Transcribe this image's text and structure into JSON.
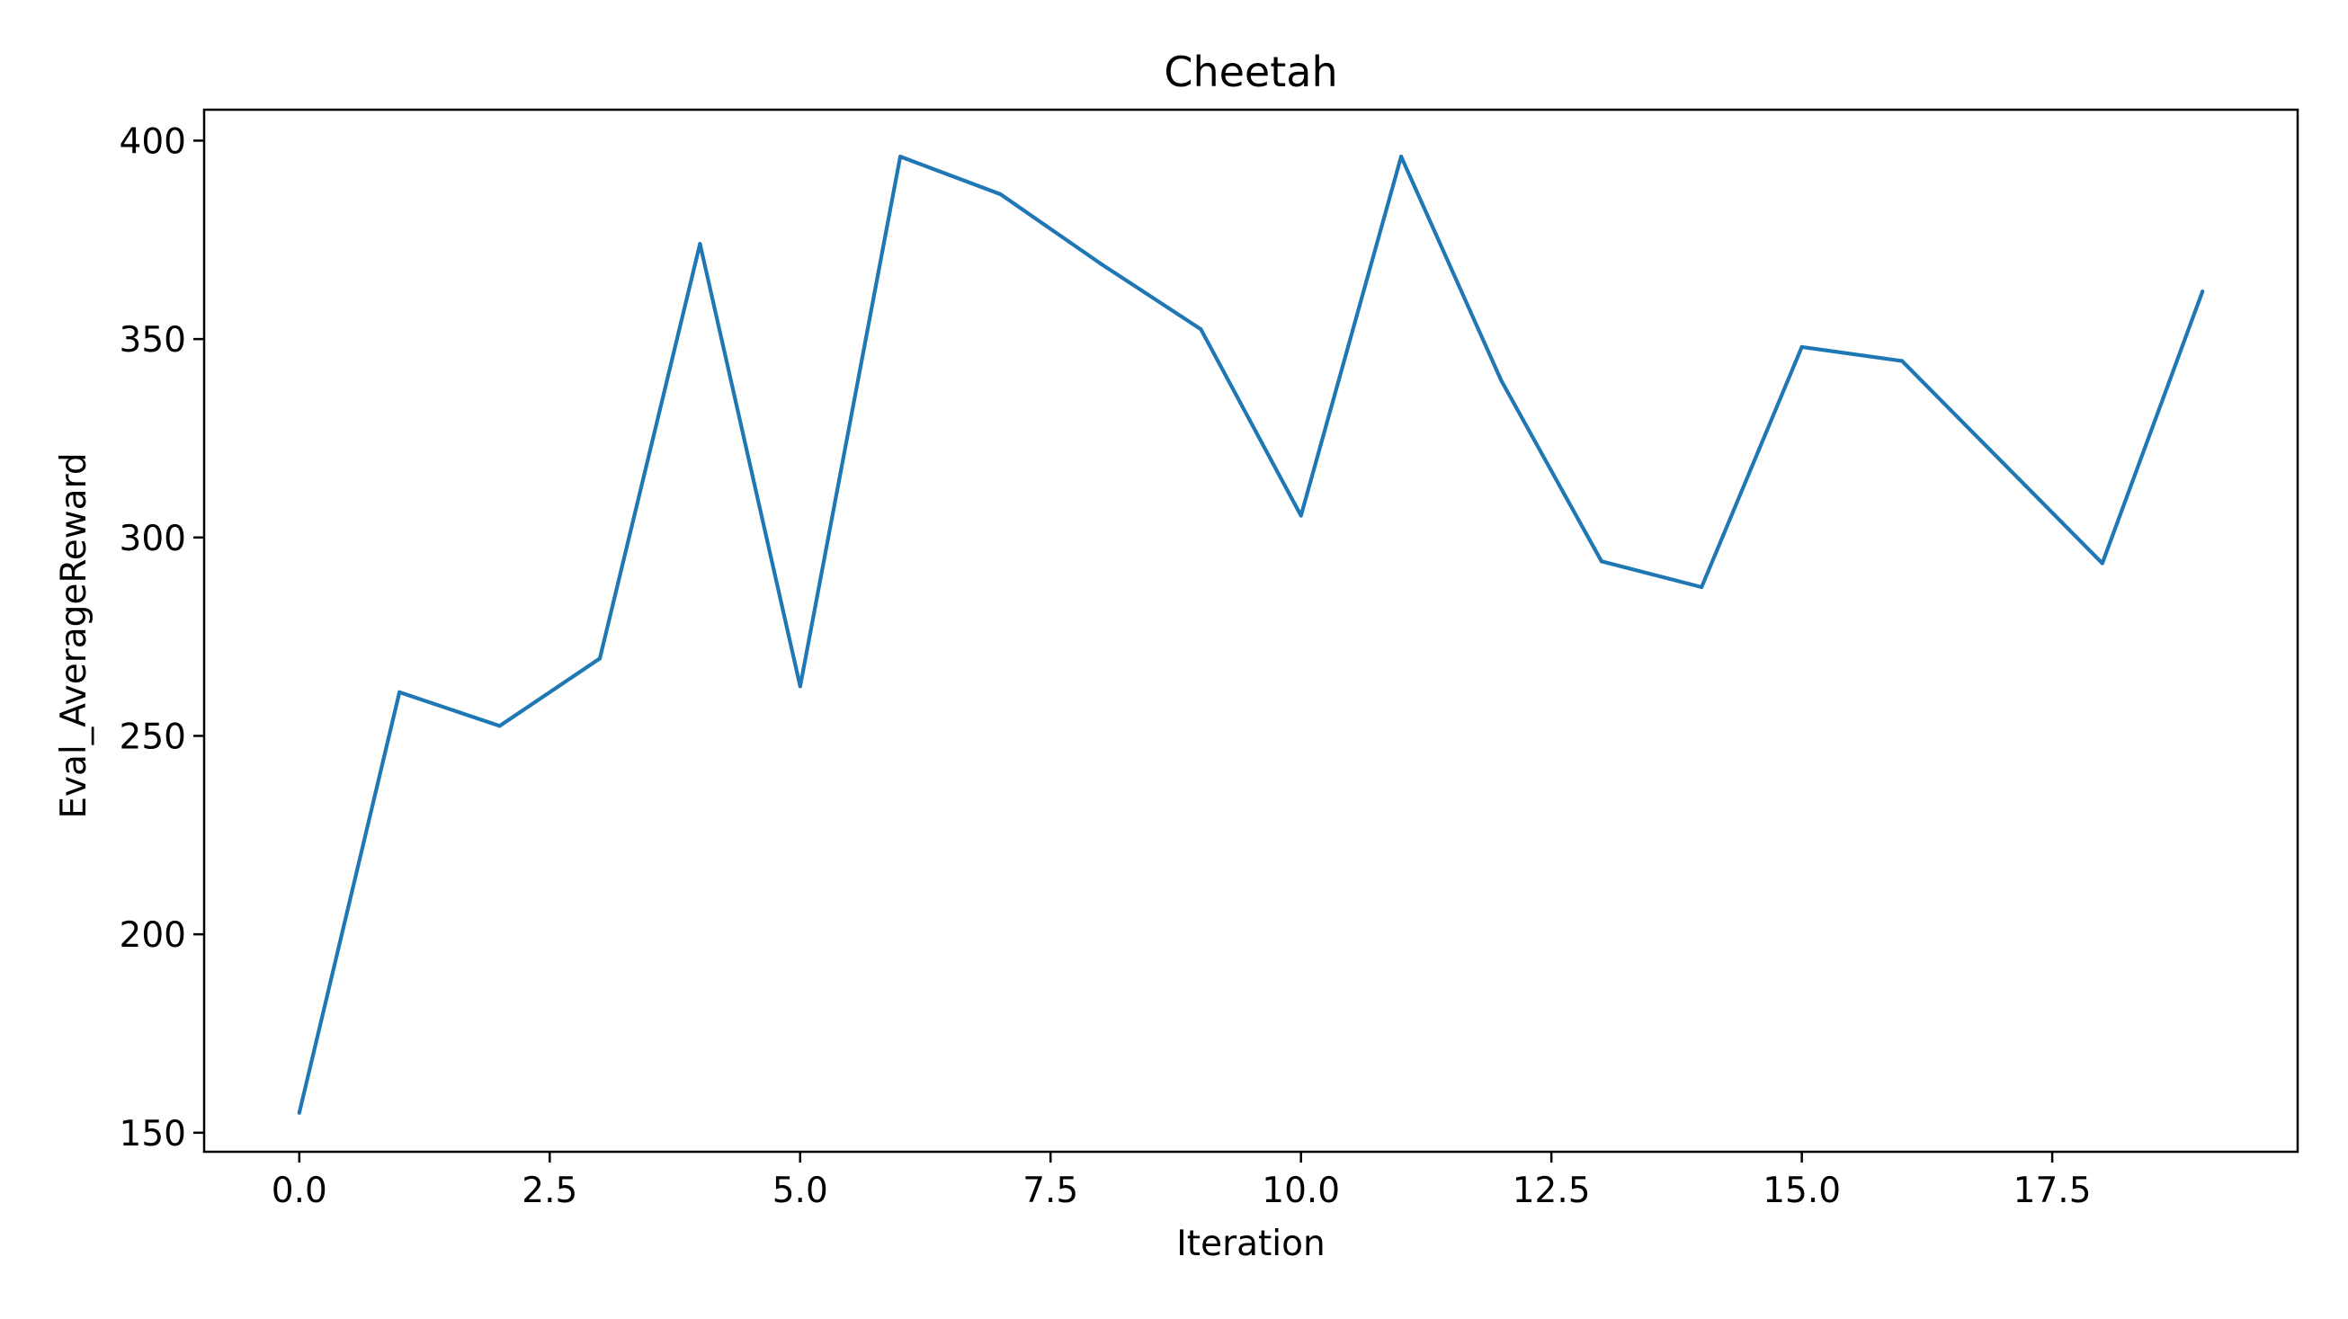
{
  "chart_data": {
    "type": "line",
    "title": "Cheetah",
    "xlabel": "Iteration",
    "ylabel": "Eval_AverageReward",
    "xlim": [
      -0.95,
      19.95
    ],
    "ylim": [
      145.2,
      407.8
    ],
    "xticks": [
      0.0,
      2.5,
      5.0,
      7.5,
      10.0,
      12.5,
      15.0,
      17.5
    ],
    "xtick_labels": [
      "0.0",
      "2.5",
      "5.0",
      "7.5",
      "10.0",
      "12.5",
      "15.0",
      "17.5"
    ],
    "yticks": [
      150,
      200,
      250,
      300,
      350,
      400
    ],
    "ytick_labels": [
      "150",
      "200",
      "250",
      "300",
      "350",
      "400"
    ],
    "grid": false,
    "legend": "none",
    "series": [
      {
        "color": "#1f77b4",
        "x": [
          0,
          1,
          2,
          3,
          4,
          5,
          6,
          7,
          8,
          9,
          10,
          11,
          12,
          13,
          14,
          15,
          16,
          17,
          18,
          19
        ],
        "y": [
          155,
          261,
          252.5,
          269.5,
          374,
          262.5,
          396,
          386.5,
          369,
          352.5,
          305.5,
          396,
          339.5,
          294,
          287.5,
          348,
          344.5,
          319,
          293.5,
          362
        ]
      }
    ]
  }
}
